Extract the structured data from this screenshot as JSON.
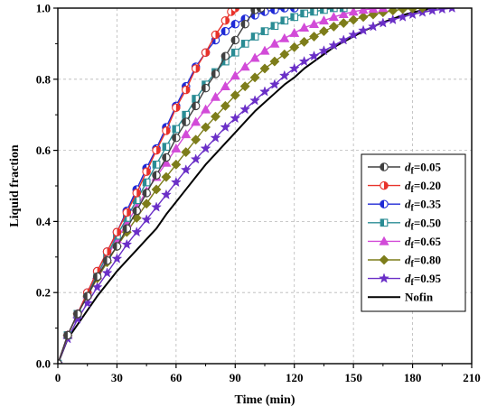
{
  "chart_data": {
    "type": "line",
    "xlabel": "Time (min)",
    "ylabel": "Liquid fraction",
    "xlim": [
      0,
      210
    ],
    "ylim": [
      0,
      1.0
    ],
    "xticks": [
      0,
      30,
      60,
      90,
      120,
      150,
      180,
      210
    ],
    "xtick_labels": [
      "0",
      "30",
      "60",
      "90",
      "120",
      "150",
      "180",
      "210"
    ],
    "yticks": [
      0,
      0.2,
      0.4,
      0.6,
      0.8,
      1.0
    ],
    "ytick_labels": [
      "0.0",
      "0.2",
      "0.4",
      "0.6",
      "0.8",
      "1.0"
    ],
    "grid": true,
    "legend_position": "right",
    "series": [
      {
        "name": "0.05",
        "label_prefix": "d",
        "label_sub": "f",
        "label_suffix": "=",
        "color": "#404040",
        "marker": "circle-half-left",
        "points": [
          [
            0,
            0
          ],
          [
            5,
            0.08
          ],
          [
            10,
            0.14
          ],
          [
            15,
            0.19
          ],
          [
            20,
            0.245
          ],
          [
            25,
            0.29
          ],
          [
            30,
            0.33
          ],
          [
            35,
            0.38
          ],
          [
            40,
            0.43
          ],
          [
            45,
            0.48
          ],
          [
            50,
            0.53
          ],
          [
            55,
            0.58
          ],
          [
            60,
            0.635
          ],
          [
            65,
            0.68
          ],
          [
            70,
            0.725
          ],
          [
            75,
            0.775
          ],
          [
            80,
            0.815
          ],
          [
            85,
            0.865
          ],
          [
            90,
            0.91
          ],
          [
            95,
            0.955
          ],
          [
            100,
            0.995
          ],
          [
            103,
            1.0
          ]
        ]
      },
      {
        "name": "0.20",
        "label_prefix": "d",
        "label_sub": "f",
        "label_suffix": "=",
        "color": "#e8332b",
        "marker": "circle-half-right",
        "points": [
          [
            0,
            0
          ],
          [
            5,
            0.08
          ],
          [
            10,
            0.14
          ],
          [
            15,
            0.2
          ],
          [
            20,
            0.26
          ],
          [
            25,
            0.315
          ],
          [
            30,
            0.37
          ],
          [
            35,
            0.425
          ],
          [
            40,
            0.48
          ],
          [
            45,
            0.54
          ],
          [
            50,
            0.6
          ],
          [
            55,
            0.655
          ],
          [
            60,
            0.72
          ],
          [
            65,
            0.77
          ],
          [
            70,
            0.83
          ],
          [
            75,
            0.875
          ],
          [
            80,
            0.925
          ],
          [
            85,
            0.965
          ],
          [
            88,
            0.99
          ],
          [
            90,
            1.0
          ]
        ]
      },
      {
        "name": "0.35",
        "label_prefix": "d",
        "label_sub": "f",
        "label_suffix": "=",
        "color": "#1f2ad6",
        "marker": "circle-half-left",
        "points": [
          [
            0,
            0
          ],
          [
            5,
            0.08
          ],
          [
            10,
            0.14
          ],
          [
            15,
            0.2
          ],
          [
            20,
            0.26
          ],
          [
            25,
            0.315
          ],
          [
            30,
            0.37
          ],
          [
            35,
            0.43
          ],
          [
            40,
            0.49
          ],
          [
            45,
            0.55
          ],
          [
            50,
            0.605
          ],
          [
            55,
            0.665
          ],
          [
            60,
            0.725
          ],
          [
            65,
            0.78
          ],
          [
            70,
            0.835
          ],
          [
            75,
            0.875
          ],
          [
            80,
            0.91
          ],
          [
            85,
            0.935
          ],
          [
            90,
            0.955
          ],
          [
            95,
            0.97
          ],
          [
            100,
            0.98
          ],
          [
            105,
            0.99
          ],
          [
            110,
            0.995
          ],
          [
            115,
            1.0
          ],
          [
            120,
            1.0
          ]
        ]
      },
      {
        "name": "0.50",
        "label_prefix": "d",
        "label_sub": "f",
        "label_suffix": "=",
        "color": "#2a8c94",
        "marker": "square-half",
        "points": [
          [
            0,
            0
          ],
          [
            5,
            0.08
          ],
          [
            10,
            0.14
          ],
          [
            15,
            0.195
          ],
          [
            20,
            0.25
          ],
          [
            25,
            0.305
          ],
          [
            30,
            0.36
          ],
          [
            35,
            0.41
          ],
          [
            40,
            0.46
          ],
          [
            45,
            0.51
          ],
          [
            50,
            0.56
          ],
          [
            55,
            0.61
          ],
          [
            60,
            0.66
          ],
          [
            65,
            0.7
          ],
          [
            70,
            0.745
          ],
          [
            75,
            0.785
          ],
          [
            80,
            0.82
          ],
          [
            85,
            0.85
          ],
          [
            90,
            0.875
          ],
          [
            95,
            0.9
          ],
          [
            100,
            0.92
          ],
          [
            105,
            0.935
          ],
          [
            110,
            0.95
          ],
          [
            115,
            0.965
          ],
          [
            120,
            0.975
          ],
          [
            125,
            0.985
          ],
          [
            130,
            0.99
          ],
          [
            135,
            0.995
          ],
          [
            140,
            1.0
          ],
          [
            145,
            1.0
          ]
        ]
      },
      {
        "name": "0.65",
        "label_prefix": "d",
        "label_sub": "f",
        "label_suffix": "=",
        "color": "#d24bd8",
        "marker": "triangle",
        "points": [
          [
            0,
            0
          ],
          [
            5,
            0.08
          ],
          [
            10,
            0.14
          ],
          [
            15,
            0.195
          ],
          [
            20,
            0.25
          ],
          [
            25,
            0.3
          ],
          [
            30,
            0.35
          ],
          [
            35,
            0.395
          ],
          [
            40,
            0.44
          ],
          [
            45,
            0.485
          ],
          [
            50,
            0.525
          ],
          [
            55,
            0.565
          ],
          [
            60,
            0.605
          ],
          [
            65,
            0.645
          ],
          [
            70,
            0.68
          ],
          [
            75,
            0.715
          ],
          [
            80,
            0.75
          ],
          [
            85,
            0.78
          ],
          [
            90,
            0.81
          ],
          [
            95,
            0.835
          ],
          [
            100,
            0.86
          ],
          [
            105,
            0.88
          ],
          [
            110,
            0.9
          ],
          [
            115,
            0.915
          ],
          [
            120,
            0.93
          ],
          [
            125,
            0.945
          ],
          [
            130,
            0.955
          ],
          [
            135,
            0.965
          ],
          [
            140,
            0.975
          ],
          [
            145,
            0.983
          ],
          [
            150,
            0.99
          ],
          [
            155,
            0.995
          ],
          [
            160,
            0.998
          ],
          [
            165,
            1.0
          ]
        ]
      },
      {
        "name": "0.80",
        "label_prefix": "d",
        "label_sub": "f",
        "label_suffix": "=",
        "color": "#7d7d1a",
        "marker": "diamond",
        "points": [
          [
            0,
            0
          ],
          [
            5,
            0.08
          ],
          [
            10,
            0.14
          ],
          [
            15,
            0.19
          ],
          [
            20,
            0.24
          ],
          [
            25,
            0.285
          ],
          [
            30,
            0.33
          ],
          [
            35,
            0.37
          ],
          [
            40,
            0.41
          ],
          [
            45,
            0.45
          ],
          [
            50,
            0.49
          ],
          [
            55,
            0.525
          ],
          [
            60,
            0.56
          ],
          [
            65,
            0.595
          ],
          [
            70,
            0.63
          ],
          [
            75,
            0.665
          ],
          [
            80,
            0.695
          ],
          [
            85,
            0.725
          ],
          [
            90,
            0.755
          ],
          [
            95,
            0.78
          ],
          [
            100,
            0.805
          ],
          [
            105,
            0.83
          ],
          [
            110,
            0.85
          ],
          [
            115,
            0.87
          ],
          [
            120,
            0.89
          ],
          [
            125,
            0.905
          ],
          [
            130,
            0.92
          ],
          [
            135,
            0.935
          ],
          [
            140,
            0.948
          ],
          [
            145,
            0.958
          ],
          [
            150,
            0.967
          ],
          [
            155,
            0.975
          ],
          [
            160,
            0.982
          ],
          [
            165,
            0.988
          ],
          [
            170,
            0.993
          ],
          [
            175,
            0.997
          ],
          [
            180,
            0.999
          ],
          [
            185,
            1.0
          ]
        ]
      },
      {
        "name": "0.95",
        "label_prefix": "d",
        "label_sub": "f",
        "label_suffix": "=",
        "color": "#6a2fc7",
        "marker": "star",
        "points": [
          [
            0,
            0
          ],
          [
            5,
            0.07
          ],
          [
            10,
            0.125
          ],
          [
            15,
            0.17
          ],
          [
            20,
            0.215
          ],
          [
            25,
            0.255
          ],
          [
            30,
            0.295
          ],
          [
            35,
            0.335
          ],
          [
            40,
            0.37
          ],
          [
            45,
            0.405
          ],
          [
            50,
            0.44
          ],
          [
            55,
            0.475
          ],
          [
            60,
            0.51
          ],
          [
            65,
            0.545
          ],
          [
            70,
            0.575
          ],
          [
            75,
            0.605
          ],
          [
            80,
            0.635
          ],
          [
            85,
            0.665
          ],
          [
            90,
            0.69
          ],
          [
            95,
            0.715
          ],
          [
            100,
            0.74
          ],
          [
            105,
            0.765
          ],
          [
            110,
            0.785
          ],
          [
            115,
            0.81
          ],
          [
            120,
            0.83
          ],
          [
            125,
            0.85
          ],
          [
            130,
            0.865
          ],
          [
            135,
            0.88
          ],
          [
            140,
            0.895
          ],
          [
            145,
            0.91
          ],
          [
            150,
            0.925
          ],
          [
            155,
            0.937
          ],
          [
            160,
            0.948
          ],
          [
            165,
            0.958
          ],
          [
            170,
            0.967
          ],
          [
            175,
            0.975
          ],
          [
            180,
            0.982
          ],
          [
            185,
            0.988
          ],
          [
            190,
            0.993
          ],
          [
            195,
            0.997
          ],
          [
            200,
            1.0
          ]
        ]
      },
      {
        "name": "Nofin",
        "label_prefix": "",
        "label_sub": "",
        "label_suffix": "",
        "color": "#000000",
        "marker": "none",
        "points": [
          [
            0,
            0
          ],
          [
            5,
            0.07
          ],
          [
            10,
            0.11
          ],
          [
            15,
            0.15
          ],
          [
            20,
            0.19
          ],
          [
            25,
            0.225
          ],
          [
            30,
            0.26
          ],
          [
            35,
            0.29
          ],
          [
            40,
            0.32
          ],
          [
            45,
            0.35
          ],
          [
            50,
            0.38
          ],
          [
            55,
            0.42
          ],
          [
            60,
            0.455
          ],
          [
            65,
            0.49
          ],
          [
            70,
            0.525
          ],
          [
            75,
            0.56
          ],
          [
            80,
            0.59
          ],
          [
            85,
            0.62
          ],
          [
            90,
            0.65
          ],
          [
            95,
            0.68
          ],
          [
            100,
            0.71
          ],
          [
            105,
            0.735
          ],
          [
            110,
            0.76
          ],
          [
            115,
            0.785
          ],
          [
            120,
            0.805
          ],
          [
            125,
            0.83
          ],
          [
            130,
            0.85
          ],
          [
            135,
            0.87
          ],
          [
            140,
            0.89
          ],
          [
            145,
            0.905
          ],
          [
            150,
            0.92
          ],
          [
            155,
            0.935
          ],
          [
            160,
            0.948
          ],
          [
            165,
            0.96
          ],
          [
            170,
            0.97
          ],
          [
            175,
            0.98
          ],
          [
            180,
            0.988
          ],
          [
            185,
            0.994
          ],
          [
            190,
            0.999
          ],
          [
            192,
            1.0
          ]
        ]
      }
    ]
  }
}
